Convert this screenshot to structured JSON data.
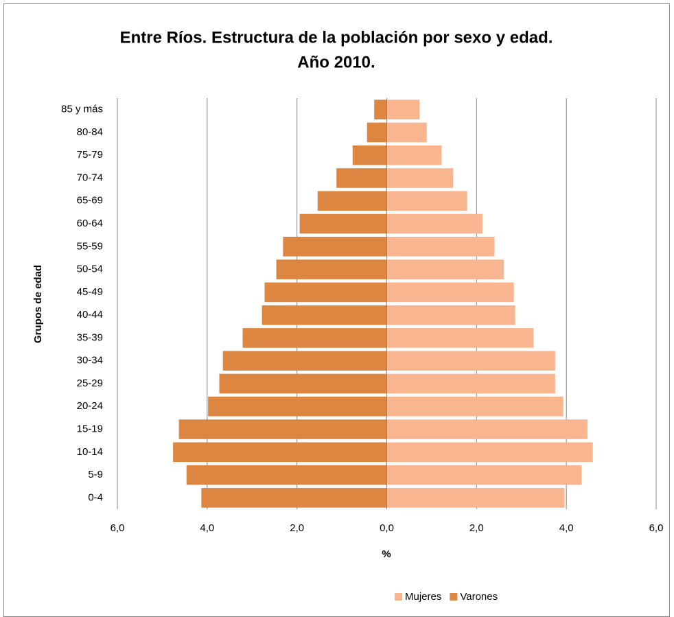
{
  "chart_data": {
    "type": "bar",
    "orientation": "horizontal",
    "title": [
      "Entre Ríos. Estructura de la población por sexo y edad.",
      "Año 2010."
    ],
    "x_label": "%",
    "y_label": "Grupos de edad",
    "categories": [
      "0-4",
      "5-9",
      "10-14",
      "15-19",
      "20-24",
      "25-29",
      "30-34",
      "35-39",
      "40-44",
      "45-49",
      "50-54",
      "55-59",
      "60-64",
      "65-69",
      "70-74",
      "75-79",
      "80-84",
      "85 y más"
    ],
    "series": [
      {
        "name": "Mujeres",
        "color": "#f8b58f",
        "values": [
          3.96,
          4.34,
          4.59,
          4.47,
          3.93,
          3.75,
          3.75,
          3.27,
          2.86,
          2.83,
          2.61,
          2.4,
          2.13,
          1.79,
          1.48,
          1.22,
          0.89,
          0.73
        ]
      },
      {
        "name": "Varones",
        "color": "#dd8642",
        "values": [
          -4.13,
          -4.46,
          -4.76,
          -4.63,
          -3.98,
          -3.73,
          -3.65,
          -3.21,
          -2.78,
          -2.72,
          -2.46,
          -2.31,
          -1.94,
          -1.54,
          -1.12,
          -0.76,
          -0.44,
          -0.28
        ]
      }
    ],
    "xlim": [
      -6,
      6
    ],
    "xticks": [
      {
        "value": -6,
        "label": "6,0"
      },
      {
        "value": -4,
        "label": "4,0"
      },
      {
        "value": -2,
        "label": "2,0"
      },
      {
        "value": 0,
        "label": "0,0"
      },
      {
        "value": 2,
        "label": "2,0"
      },
      {
        "value": 4,
        "label": "4,0"
      },
      {
        "value": 6,
        "label": "6,0"
      }
    ],
    "grid": true,
    "legend": "bottom"
  }
}
